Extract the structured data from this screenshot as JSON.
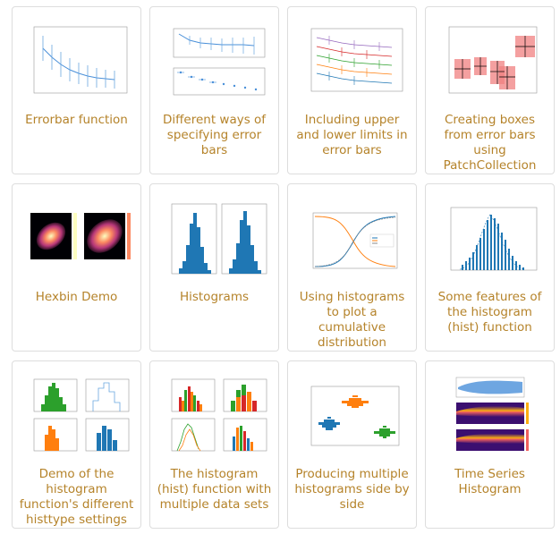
{
  "accent_color": "#b5832a",
  "gallery": {
    "items": [
      {
        "caption": "Errorbar function",
        "icon": "errorbar-thumbnail"
      },
      {
        "caption": "Different ways of specifying error bars",
        "icon": "errorbar-methods-thumbnail"
      },
      {
        "caption": "Including upper and lower limits in error bars",
        "icon": "errorbar-limits-thumbnail"
      },
      {
        "caption": "Creating boxes from error bars using PatchCollection",
        "icon": "errorbar-boxes-thumbnail"
      },
      {
        "caption": "Hexbin Demo",
        "icon": "hexbin-thumbnail"
      },
      {
        "caption": "Histograms",
        "icon": "histograms-thumbnail"
      },
      {
        "caption": "Using histograms to plot a cumulative distribution",
        "icon": "cumulative-histogram-thumbnail"
      },
      {
        "caption": "Some features of the histogram (hist) function",
        "icon": "histogram-features-thumbnail"
      },
      {
        "caption": "Demo of the histogram function's different histtype settings",
        "icon": "histtype-thumbnail"
      },
      {
        "caption": "The histogram (hist) function with multiple data sets",
        "icon": "multihist-thumbnail"
      },
      {
        "caption": "Producing multiple histograms side by side",
        "icon": "side-by-side-histogram-thumbnail"
      },
      {
        "caption": "Time Series Histogram",
        "icon": "time-series-histogram-thumbnail"
      }
    ]
  }
}
